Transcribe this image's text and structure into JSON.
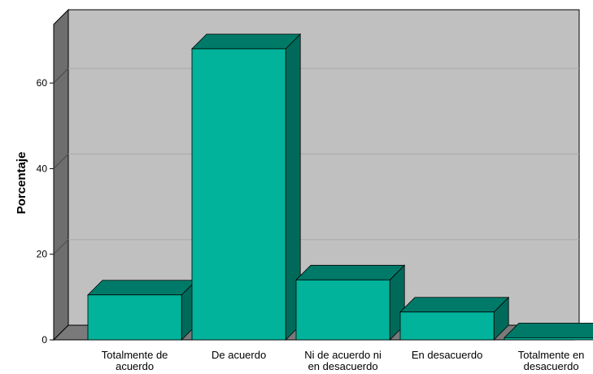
{
  "chart_data": {
    "type": "bar",
    "style": "3d",
    "categories": [
      [
        "Totalmente de",
        "acuerdo"
      ],
      [
        "De acuerdo"
      ],
      [
        "Ni de acuerdo ni",
        "en desacuerdo"
      ],
      [
        "En desacuerdo"
      ],
      [
        "Totalmente en",
        "desacuerdo"
      ]
    ],
    "values": [
      10.5,
      68,
      14,
      6.5,
      0.5
    ],
    "ylabel": "Porcentaje",
    "xlabel": "",
    "ylim": [
      0,
      70
    ],
    "yticks": [
      0,
      20,
      40,
      60
    ],
    "grid": true,
    "colors": {
      "bar_front": "#00b39a",
      "bar_top": "#007a68",
      "bar_side": "#006a5a",
      "back_wall": "#c0c0c0",
      "left_wall": "#6e6e6e",
      "floor": "#7a7a7a",
      "gridline": "#a8a8a8"
    }
  }
}
